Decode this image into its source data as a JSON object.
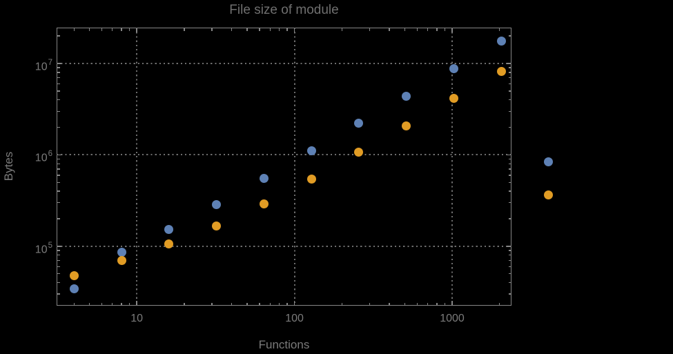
{
  "title": "File size of module",
  "colors": {
    "background": "#000000",
    "frame": "#878787",
    "grid": "#6d6d6d",
    "label": "#7b7b7b",
    "title": "#6f6f6f",
    "series1": "#5e81b5",
    "series2": "#e19c24"
  },
  "chart_data": {
    "type": "scatter",
    "title": "File size of module",
    "xlabel": "Functions",
    "ylabel": "Bytes",
    "x_scale": "log",
    "y_scale": "log",
    "grid": "dotted, at decades only",
    "legend": "none",
    "x": [
      4,
      8,
      16,
      32,
      64,
      128,
      256,
      512,
      1024,
      2048,
      4096
    ],
    "series": [
      {
        "name": "series-1-blue",
        "color": "#5e81b5",
        "values": [
          34000,
          86000,
          152000,
          284000,
          558000,
          1110000,
          2220000,
          4350000,
          8750000,
          17500000,
          840000
        ]
      },
      {
        "name": "series-2-orange",
        "color": "#e19c24",
        "values": [
          48000,
          69500,
          107000,
          168000,
          289000,
          540000,
          1070000,
          2070000,
          4150000,
          8200000,
          366000
        ]
      }
    ],
    "x_ticks": [
      10,
      100,
      1000
    ],
    "x_tick_labels": [
      "10",
      "100",
      "1000"
    ],
    "y_ticks": [
      100000,
      1000000,
      10000000
    ],
    "y_tick_exponents": [
      5,
      6,
      7
    ],
    "xlim": [
      3.1,
      2380
    ],
    "ylim": [
      22400,
      24700000
    ],
    "note": "points at x=4096 lie outside the right edge of the plot frame (no clipping)"
  }
}
